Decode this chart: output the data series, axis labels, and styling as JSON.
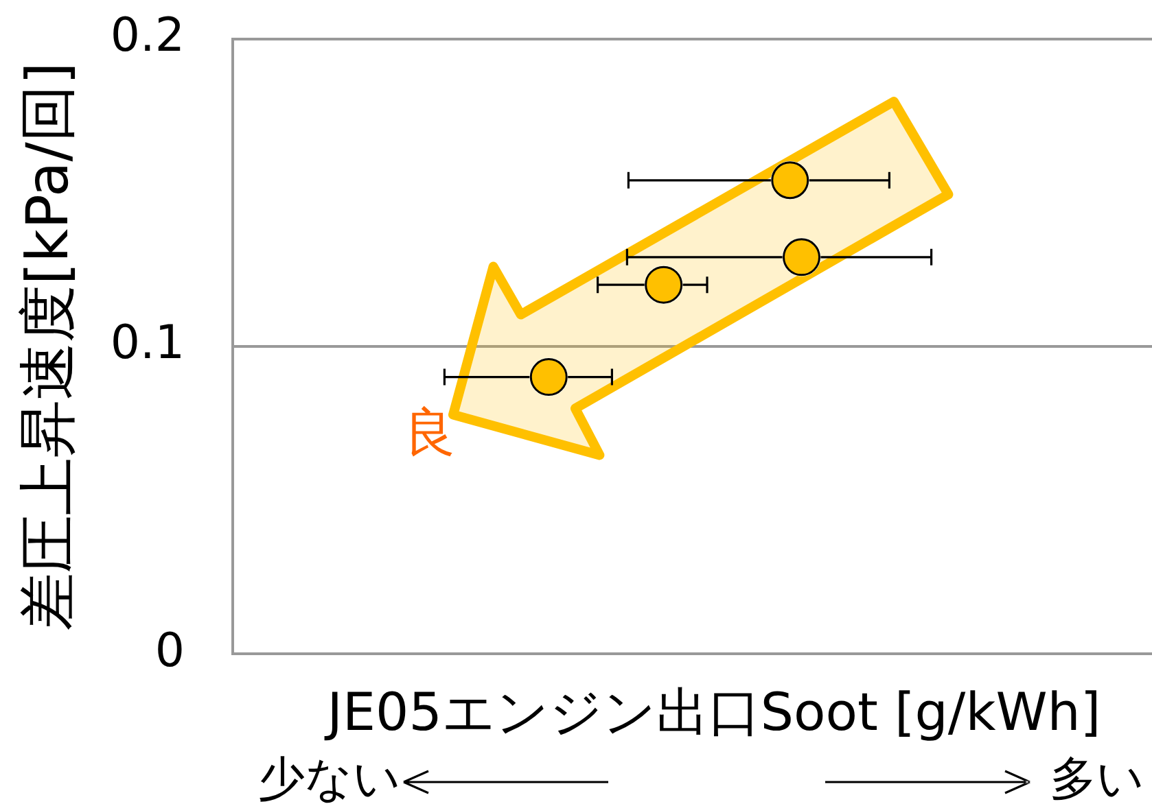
{
  "chart_data": {
    "type": "scatter",
    "xlabel": "JE05エンジン出口Soot [g/kWh]",
    "ylabel": "差圧上昇速度[kPa/回]",
    "categories": [
      null,
      null,
      null,
      null,
      null,
      null,
      null,
      null,
      null,
      null,
      null,
      null,
      null,
      null,
      null,
      null,
      null,
      null,
      null,
      null,
      null,
      null,
      null,
      null,
      null,
      null,
      null,
      null,
      null,
      null,
      null,
      null,
      null,
      null,
      null,
      null,
      null,
      null,
      null,
      null,
      null,
      null,
      null,
      null,
      null,
      null,
      null,
      null,
      null,
      null,
      null,
      null,
      null,
      null,
      null,
      null,
      null,
      null,
      null,
      null,
      null,
      null,
      null,
      null,
      null,
      null,
      null,
      null,
      null,
      null,
      null,
      null,
      null,
      null,
      null,
      null,
      null,
      null,
      null,
      null
    ],
    "values": [
      null,
      null,
      null,
      null,
      null,
      null,
      null,
      null,
      null,
      null,
      null,
      null,
      null,
      null,
      null,
      null,
      null,
      null,
      null,
      null,
      null,
      null,
      null,
      null,
      null,
      null,
      null,
      0.09,
      null,
      null,
      null,
      null,
      null,
      null,
      null,
      null,
      null,
      0.12,
      null,
      null,
      null,
      null,
      null,
      null,
      null,
      null,
      null,
      null,
      0.154,
      0.129,
      null,
      null,
      null,
      null,
      null,
      null,
      null,
      null,
      null,
      null,
      null,
      null,
      null,
      null,
      null,
      null,
      null,
      null,
      null,
      null,
      null,
      null,
      null,
      null,
      null,
      null,
      null,
      null,
      null,
      null
    ],
    "color": "#ffc000",
    "ylim": [
      0,
      0.2
    ],
    "yticks": [
      0,
      0.1,
      0.2
    ],
    "tick_labels": "y",
    "grid": "y",
    "marker": "circle",
    "annotations": [
      "良",
      "少ない",
      "多い"
    ]
  }
}
